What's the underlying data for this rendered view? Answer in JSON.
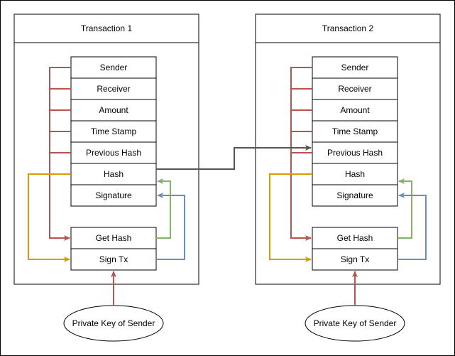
{
  "colors": {
    "red": "#b85450",
    "green": "#82b366",
    "blue": "#6c8ebf",
    "orange": "#d79b00",
    "gray": "#545454"
  },
  "transactions": [
    {
      "title": "Transaction 1",
      "fields": [
        "Sender",
        "Receiver",
        "Amount",
        "Time Stamp",
        "Previous Hash",
        "Hash",
        "Signature"
      ],
      "get_hash": "Get Hash",
      "sign_tx": "Sign Tx",
      "key_label": "Private Key of Sender"
    },
    {
      "title": "Transaction 2",
      "fields": [
        "Sender",
        "Receiver",
        "Amount",
        "Time Stamp",
        "Previous Hash",
        "Hash",
        "Signature"
      ],
      "get_hash": "Get Hash",
      "sign_tx": "Sign Tx",
      "key_label": "Private Key of Sender"
    }
  ]
}
